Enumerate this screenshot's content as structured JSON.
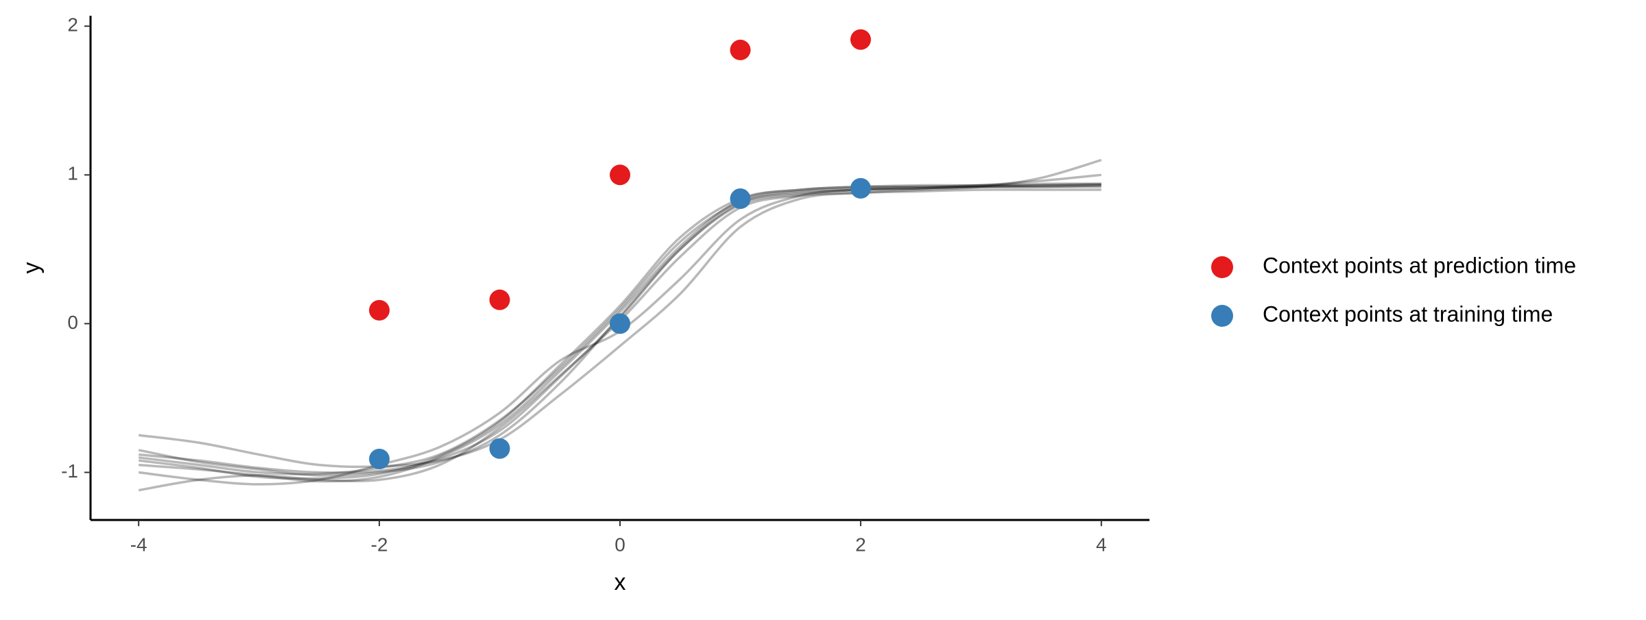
{
  "chart_data": {
    "type": "scatter",
    "x_label": "x",
    "y_label": "y",
    "xlim": [
      -4.4,
      4.4
    ],
    "ylim": [
      -1.32,
      2.07
    ],
    "xticks": [
      -4,
      -2,
      0,
      2,
      4
    ],
    "yticks": [
      -1,
      0,
      1,
      2
    ],
    "grid": false,
    "legend_position": "right",
    "series": [
      {
        "name": "Context points at prediction time",
        "color": "#e41a1c",
        "x": [
          -2,
          -1,
          0,
          1,
          2
        ],
        "values": [
          0.09,
          0.16,
          1.0,
          1.84,
          1.91
        ]
      },
      {
        "name": "Context points at training time",
        "color": "#377eb8",
        "x": [
          -2,
          -1,
          0,
          1,
          2
        ],
        "values": [
          -0.91,
          -0.84,
          0,
          0.84,
          0.91
        ]
      }
    ],
    "sample_curves": {
      "color": "rgba(0,0,0,0.28)",
      "x": [
        -4,
        -3.5,
        -3,
        -2.5,
        -2,
        -1.5,
        -1,
        -0.5,
        0,
        0.5,
        1,
        1.5,
        2,
        2.5,
        3,
        3.5,
        4
      ],
      "curves": [
        [
          -0.9,
          -0.95,
          -1.0,
          -1.01,
          -0.97,
          -0.88,
          -0.65,
          -0.3,
          0.1,
          0.55,
          0.82,
          0.89,
          0.91,
          0.92,
          0.92,
          0.93,
          0.93
        ],
        [
          -0.85,
          -0.93,
          -0.98,
          -1.02,
          -1.0,
          -0.93,
          -0.75,
          -0.4,
          0.05,
          0.5,
          0.8,
          0.87,
          0.9,
          0.91,
          0.92,
          0.92,
          0.93
        ],
        [
          -1.0,
          -1.05,
          -1.08,
          -1.05,
          -0.95,
          -0.83,
          -0.6,
          -0.25,
          -0.05,
          0.3,
          0.7,
          0.86,
          0.9,
          0.91,
          0.93,
          0.96,
          1.0
        ],
        [
          -0.75,
          -0.8,
          -0.88,
          -0.95,
          -0.96,
          -0.92,
          -0.78,
          -0.48,
          -0.15,
          0.2,
          0.65,
          0.84,
          0.88,
          0.9,
          0.92,
          0.98,
          1.1
        ],
        [
          -1.12,
          -1.05,
          -1.02,
          -1.05,
          -1.05,
          -0.95,
          -0.7,
          -0.35,
          0.02,
          0.45,
          0.78,
          0.86,
          0.88,
          0.89,
          0.9,
          0.9,
          0.9
        ],
        [
          -0.95,
          -0.98,
          -1.02,
          -1.06,
          -1.03,
          -0.9,
          -0.68,
          -0.32,
          0.08,
          0.52,
          0.83,
          0.9,
          0.92,
          0.93,
          0.93,
          0.94,
          0.94
        ],
        [
          -0.88,
          -0.92,
          -0.97,
          -1.0,
          -0.99,
          -0.91,
          -0.72,
          -0.36,
          0.04,
          0.5,
          0.81,
          0.88,
          0.9,
          0.91,
          0.92,
          0.92,
          0.92
        ],
        [
          -0.92,
          -0.97,
          -1.03,
          -1.04,
          -1.01,
          -0.89,
          -0.66,
          -0.28,
          0.12,
          0.58,
          0.84,
          0.9,
          0.92,
          0.92,
          0.93,
          0.93,
          0.94
        ]
      ]
    }
  }
}
